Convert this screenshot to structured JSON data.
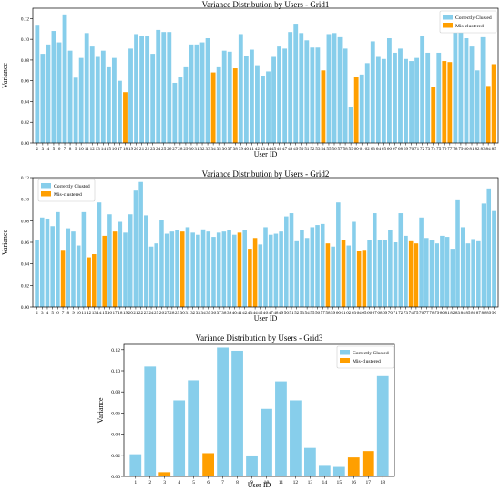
{
  "colors": {
    "correct": "#87ceeb",
    "mis": "#ff9f00"
  },
  "chart_data": [
    {
      "type": "bar",
      "title": "Variance Distribution by Users - Grid1",
      "xlabel": "User ID",
      "ylabel": "Variance",
      "ylim": [
        0,
        0.13
      ],
      "yticks": [
        0.0,
        0.02,
        0.04,
        0.06,
        0.08,
        0.1,
        0.12
      ],
      "legend_position": "top-right",
      "categories": [
        "2",
        "3",
        "4",
        "5",
        "6",
        "7",
        "8",
        "9",
        "10",
        "11",
        "12",
        "13",
        "14",
        "15",
        "16",
        "17",
        "18",
        "19",
        "20",
        "21",
        "22",
        "23",
        "24",
        "25",
        "26",
        "27",
        "28",
        "29",
        "30",
        "31",
        "32",
        "33",
        "34",
        "35",
        "36",
        "37",
        "38",
        "39",
        "40",
        "41",
        "42",
        "43",
        "44",
        "45",
        "46",
        "47",
        "48",
        "49",
        "50",
        "51",
        "52",
        "53",
        "54",
        "55",
        "56",
        "57",
        "58",
        "59",
        "60",
        "61",
        "62",
        "63",
        "64",
        "65",
        "66",
        "67",
        "68",
        "69",
        "70",
        "71",
        "72",
        "73",
        "74",
        "75",
        "76",
        "77",
        "78",
        "79",
        "80",
        "81",
        "82",
        "83",
        "84",
        "85"
      ],
      "series": [
        {
          "name": "Correctly Clusted",
          "values": [
            0.114,
            0.086,
            0.095,
            0.108,
            0.097,
            0.124,
            0.089,
            0.063,
            0.082,
            0.106,
            0.093,
            0.083,
            0.089,
            0.073,
            0.082,
            0.06,
            null,
            0.091,
            0.105,
            0.103,
            0.103,
            0.086,
            0.109,
            0.107,
            0.107,
            0.058,
            0.064,
            0.073,
            0.095,
            0.095,
            0.097,
            0.101,
            null,
            0.073,
            0.089,
            0.088,
            null,
            0.105,
            0.084,
            0.09,
            0.075,
            0.065,
            0.069,
            0.083,
            0.093,
            0.091,
            0.107,
            0.115,
            0.106,
            0.099,
            0.092,
            0.092,
            null,
            0.105,
            0.106,
            0.102,
            0.091,
            0.035,
            null,
            0.066,
            0.077,
            0.098,
            0.083,
            0.081,
            0.101,
            0.087,
            0.091,
            0.081,
            0.079,
            0.082,
            0.103,
            0.087,
            null,
            0.087,
            null,
            null,
            0.118,
            0.116,
            0.101,
            0.093,
            0.07,
            0.102,
            null,
            null
          ]
        },
        {
          "name": "Mis-clustered",
          "values": [
            null,
            null,
            null,
            null,
            null,
            null,
            null,
            null,
            null,
            null,
            null,
            null,
            null,
            null,
            null,
            null,
            0.049,
            null,
            null,
            null,
            null,
            null,
            null,
            null,
            null,
            null,
            null,
            null,
            null,
            null,
            null,
            null,
            0.068,
            null,
            null,
            null,
            0.072,
            null,
            null,
            null,
            null,
            null,
            null,
            null,
            null,
            null,
            null,
            null,
            null,
            null,
            null,
            null,
            0.07,
            null,
            null,
            null,
            null,
            null,
            0.064,
            null,
            null,
            null,
            null,
            null,
            null,
            null,
            null,
            null,
            null,
            null,
            null,
            null,
            0.054,
            null,
            0.079,
            0.078,
            null,
            null,
            null,
            null,
            null,
            null,
            0.055,
            0.076
          ]
        }
      ]
    },
    {
      "type": "bar",
      "title": "Variance Distribution by Users - Grid2",
      "xlabel": "User ID",
      "ylabel": "Variance",
      "ylim": [
        0,
        0.12
      ],
      "yticks": [
        0.0,
        0.02,
        0.04,
        0.06,
        0.08,
        0.1,
        0.12
      ],
      "legend_position": "top-left",
      "categories": [
        "2",
        "3",
        "4",
        "5",
        "6",
        "7",
        "8",
        "9",
        "10",
        "11",
        "12",
        "13",
        "14",
        "15",
        "16",
        "17",
        "18",
        "19",
        "20",
        "21",
        "22",
        "23",
        "24",
        "25",
        "26",
        "27",
        "28",
        "29",
        "30",
        "31",
        "32",
        "33",
        "34",
        "35",
        "36",
        "37",
        "38",
        "39",
        "40",
        "41",
        "42",
        "43",
        "44",
        "45",
        "46",
        "47",
        "48",
        "49",
        "50",
        "51",
        "52",
        "53",
        "54",
        "55",
        "56",
        "57",
        "58",
        "59",
        "60",
        "61",
        "62",
        "63",
        "64",
        "65",
        "66",
        "67",
        "68",
        "69",
        "70",
        "71",
        "72",
        "73",
        "74",
        "75",
        "76",
        "77",
        "78",
        "79",
        "80",
        "81",
        "82",
        "83",
        "84",
        "85",
        "86",
        "87",
        "88",
        "89",
        "90"
      ],
      "series": [
        {
          "name": "Correctly Clusted",
          "values": [
            0.062,
            0.083,
            0.082,
            0.075,
            0.088,
            null,
            0.073,
            0.07,
            0.057,
            0.088,
            null,
            null,
            0.097,
            null,
            0.086,
            null,
            0.079,
            0.069,
            0.086,
            0.108,
            0.116,
            0.085,
            0.056,
            0.059,
            0.081,
            0.068,
            0.07,
            0.071,
            null,
            0.074,
            0.069,
            0.067,
            0.072,
            0.07,
            0.065,
            0.069,
            0.07,
            0.071,
            0.067,
            null,
            0.071,
            null,
            null,
            0.058,
            0.074,
            0.067,
            0.068,
            0.07,
            0.084,
            0.087,
            0.061,
            0.071,
            0.064,
            0.074,
            0.076,
            0.077,
            null,
            0.056,
            0.097,
            null,
            0.057,
            0.079,
            null,
            null,
            0.062,
            0.087,
            0.062,
            0.062,
            0.071,
            0.06,
            0.087,
            0.066,
            null,
            null,
            0.083,
            0.064,
            0.062,
            0.059,
            0.066,
            0.065,
            0.054,
            0.099,
            0.074,
            0.059,
            0.063,
            0.061,
            0.096,
            0.11,
            0.089
          ]
        },
        {
          "name": "Mis-clustered",
          "values": [
            null,
            null,
            null,
            null,
            null,
            0.053,
            null,
            null,
            null,
            null,
            0.046,
            0.049,
            null,
            0.066,
            null,
            0.07,
            null,
            null,
            null,
            null,
            null,
            null,
            null,
            null,
            null,
            null,
            null,
            null,
            0.07,
            null,
            null,
            null,
            null,
            null,
            null,
            null,
            null,
            null,
            null,
            0.069,
            null,
            0.054,
            0.064,
            null,
            null,
            null,
            null,
            null,
            null,
            null,
            null,
            null,
            null,
            null,
            null,
            null,
            0.059,
            null,
            null,
            0.062,
            null,
            null,
            0.052,
            0.053,
            null,
            null,
            null,
            null,
            null,
            null,
            null,
            null,
            0.061,
            0.059,
            null,
            null,
            null,
            null,
            null,
            null,
            null,
            null,
            null,
            null,
            null,
            null,
            null,
            null,
            null
          ]
        }
      ]
    },
    {
      "type": "bar",
      "title": "Variance Distribution by Users - Grid3",
      "xlabel": "User ID",
      "ylabel": "Variance",
      "ylim": [
        0,
        0.125
      ],
      "yticks": [
        0.0,
        0.02,
        0.04,
        0.06,
        0.08,
        0.1,
        0.12
      ],
      "legend_position": "top-right",
      "categories": [
        "1",
        "2",
        "3",
        "4",
        "5",
        "6",
        "7",
        "8",
        "9",
        "10",
        "11",
        "12",
        "13",
        "14",
        "15",
        "16",
        "17",
        "18"
      ],
      "series": [
        {
          "name": "Correctly Clusted",
          "values": [
            0.021,
            0.104,
            null,
            0.072,
            0.091,
            null,
            0.122,
            0.119,
            0.019,
            0.064,
            0.09,
            0.072,
            0.027,
            0.01,
            0.009,
            null,
            null,
            0.095
          ]
        },
        {
          "name": "Mis-clustered",
          "values": [
            null,
            null,
            0.004,
            null,
            null,
            0.022,
            null,
            null,
            null,
            null,
            null,
            null,
            null,
            null,
            null,
            0.018,
            0.024,
            null
          ]
        }
      ]
    }
  ]
}
